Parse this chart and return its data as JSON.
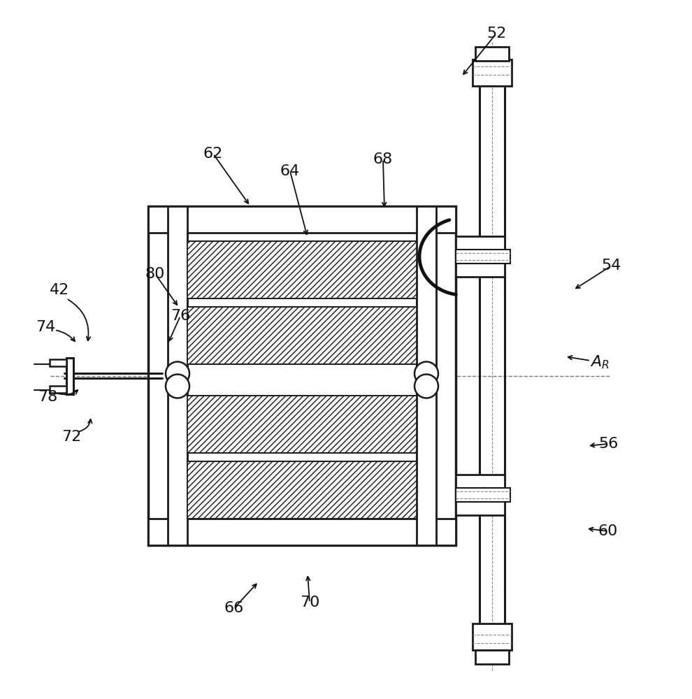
{
  "bg": "#ffffff",
  "lc": "#1a1a1a",
  "fig_w": 9.9,
  "fig_h": 10.0,
  "dpi": 100,
  "label_fs": 16,
  "label_color": "#111111"
}
